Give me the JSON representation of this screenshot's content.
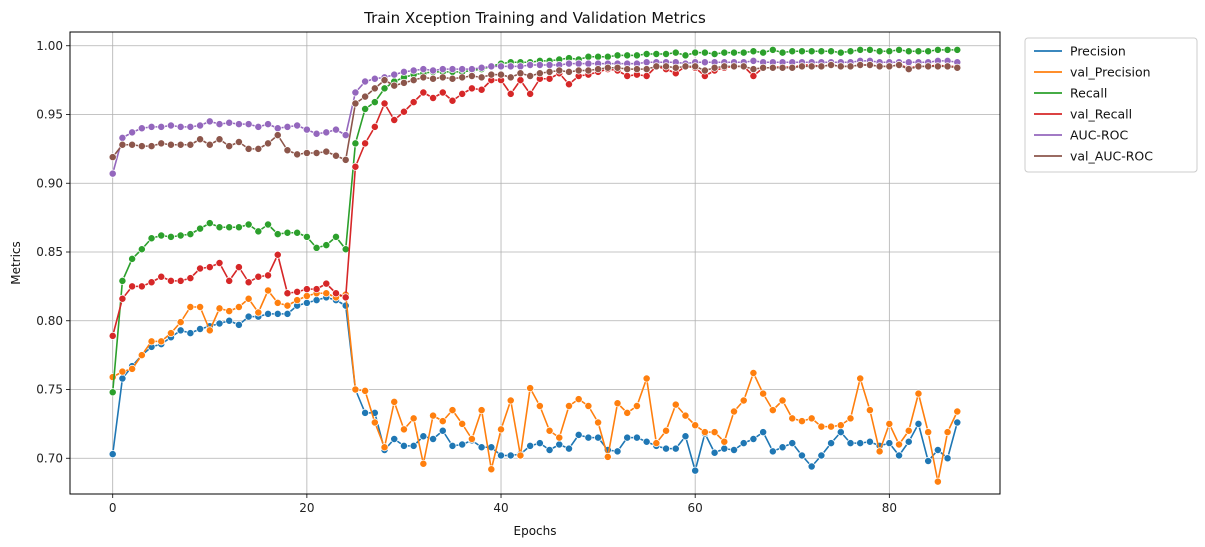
{
  "chart_data": {
    "type": "line",
    "title": "Train Xception Training and Validation Metrics",
    "xlabel": "Epochs",
    "ylabel": "Metrics",
    "xlim": [
      -4.4,
      91.4
    ],
    "ylim": [
      0.674,
      1.01
    ],
    "x_ticks": [
      0,
      20,
      40,
      60,
      80
    ],
    "x_tick_labels": [
      "0",
      "20",
      "40",
      "60",
      "80"
    ],
    "y_ticks": [
      0.7,
      0.75,
      0.8,
      0.85,
      0.9,
      0.95,
      1.0
    ],
    "y_tick_labels": [
      "0.70",
      "0.75",
      "0.80",
      "0.85",
      "0.90",
      "0.95",
      "1.00"
    ],
    "grid": true,
    "legend_position": "outside-top-right",
    "marker": "circle",
    "x": [
      0,
      1,
      2,
      3,
      4,
      5,
      6,
      7,
      8,
      9,
      10,
      11,
      12,
      13,
      14,
      15,
      16,
      17,
      18,
      19,
      20,
      21,
      22,
      23,
      24,
      25,
      26,
      27,
      28,
      29,
      30,
      31,
      32,
      33,
      34,
      35,
      36,
      37,
      38,
      39,
      40,
      41,
      42,
      43,
      44,
      45,
      46,
      47,
      48,
      49,
      50,
      51,
      52,
      53,
      54,
      55,
      56,
      57,
      58,
      59,
      60,
      61,
      62,
      63,
      64,
      65,
      66,
      67,
      68,
      69,
      70,
      71,
      72,
      73,
      74,
      75,
      76,
      77,
      78,
      79,
      80,
      81,
      82,
      83,
      84,
      85,
      86,
      87
    ],
    "series": [
      {
        "name": "Precision",
        "color": "#1f77b4",
        "values": [
          0.703,
          0.758,
          0.767,
          0.775,
          0.781,
          0.783,
          0.788,
          0.793,
          0.791,
          0.794,
          0.796,
          0.798,
          0.8,
          0.797,
          0.803,
          0.803,
          0.805,
          0.805,
          0.805,
          0.811,
          0.813,
          0.815,
          0.817,
          0.815,
          0.811,
          0.75,
          0.733,
          0.733,
          0.706,
          0.714,
          0.709,
          0.709,
          0.716,
          0.714,
          0.72,
          0.709,
          0.71,
          0.713,
          0.708,
          0.708,
          0.702,
          0.702,
          0.703,
          0.709,
          0.711,
          0.706,
          0.71,
          0.707,
          0.717,
          0.715,
          0.715,
          0.706,
          0.705,
          0.715,
          0.715,
          0.712,
          0.709,
          0.707,
          0.707,
          0.716,
          0.691,
          0.718,
          0.704,
          0.707,
          0.706,
          0.711,
          0.714,
          0.719,
          0.705,
          0.708,
          0.711,
          0.702,
          0.694,
          0.702,
          0.711,
          0.719,
          0.711,
          0.711,
          0.712,
          0.709,
          0.711,
          0.702,
          0.712,
          0.725,
          0.698,
          0.706,
          0.7,
          0.726
        ]
      },
      {
        "name": "val_Precision",
        "color": "#ff7f0e",
        "values": [
          0.759,
          0.763,
          0.765,
          0.775,
          0.785,
          0.785,
          0.791,
          0.799,
          0.81,
          0.81,
          0.793,
          0.809,
          0.807,
          0.81,
          0.816,
          0.806,
          0.822,
          0.813,
          0.811,
          0.815,
          0.818,
          0.82,
          0.82,
          0.817,
          0.819,
          0.75,
          0.749,
          0.726,
          0.708,
          0.741,
          0.721,
          0.729,
          0.696,
          0.731,
          0.727,
          0.735,
          0.725,
          0.714,
          0.735,
          0.692,
          0.721,
          0.742,
          0.702,
          0.751,
          0.738,
          0.72,
          0.715,
          0.738,
          0.743,
          0.738,
          0.726,
          0.701,
          0.74,
          0.733,
          0.738,
          0.758,
          0.711,
          0.72,
          0.739,
          0.731,
          0.724,
          0.719,
          0.719,
          0.712,
          0.734,
          0.742,
          0.762,
          0.747,
          0.735,
          0.742,
          0.729,
          0.727,
          0.729,
          0.723,
          0.723,
          0.724,
          0.729,
          0.758,
          0.735,
          0.705,
          0.725,
          0.71,
          0.72,
          0.747,
          0.719,
          0.683,
          0.719,
          0.734
        ]
      },
      {
        "name": "Recall",
        "color": "#2ca02c",
        "values": [
          0.748,
          0.829,
          0.845,
          0.852,
          0.86,
          0.862,
          0.861,
          0.862,
          0.863,
          0.867,
          0.871,
          0.868,
          0.868,
          0.868,
          0.87,
          0.865,
          0.87,
          0.863,
          0.864,
          0.864,
          0.861,
          0.853,
          0.855,
          0.861,
          0.852,
          0.929,
          0.954,
          0.959,
          0.969,
          0.974,
          0.977,
          0.979,
          0.98,
          0.981,
          0.981,
          0.981,
          0.981,
          0.982,
          0.983,
          0.985,
          0.987,
          0.988,
          0.988,
          0.988,
          0.989,
          0.989,
          0.99,
          0.991,
          0.99,
          0.992,
          0.992,
          0.992,
          0.993,
          0.993,
          0.993,
          0.994,
          0.994,
          0.994,
          0.995,
          0.993,
          0.995,
          0.995,
          0.994,
          0.995,
          0.995,
          0.995,
          0.996,
          0.995,
          0.997,
          0.995,
          0.996,
          0.996,
          0.996,
          0.996,
          0.996,
          0.995,
          0.996,
          0.997,
          0.997,
          0.996,
          0.996,
          0.997,
          0.996,
          0.996,
          0.996,
          0.997,
          0.997,
          0.997
        ]
      },
      {
        "name": "val_Recall",
        "color": "#d62728",
        "values": [
          0.789,
          0.816,
          0.825,
          0.825,
          0.828,
          0.832,
          0.829,
          0.829,
          0.831,
          0.838,
          0.839,
          0.842,
          0.829,
          0.839,
          0.828,
          0.832,
          0.833,
          0.848,
          0.82,
          0.821,
          0.823,
          0.823,
          0.827,
          0.82,
          0.817,
          0.912,
          0.929,
          0.941,
          0.958,
          0.946,
          0.952,
          0.959,
          0.966,
          0.962,
          0.966,
          0.96,
          0.965,
          0.969,
          0.968,
          0.975,
          0.975,
          0.965,
          0.975,
          0.965,
          0.976,
          0.976,
          0.98,
          0.972,
          0.978,
          0.979,
          0.981,
          0.983,
          0.982,
          0.978,
          0.979,
          0.978,
          0.985,
          0.983,
          0.98,
          0.985,
          0.984,
          0.978,
          0.982,
          0.984,
          0.985,
          0.985,
          0.978,
          0.984,
          0.984,
          0.985,
          0.984,
          0.986,
          0.986,
          0.985,
          0.986,
          0.985,
          0.985,
          0.986,
          0.986,
          0.985,
          0.985,
          0.986,
          0.984,
          0.985,
          0.985,
          0.986,
          0.985,
          0.985
        ]
      },
      {
        "name": "AUC-ROC",
        "color": "#9467bd",
        "values": [
          0.907,
          0.933,
          0.937,
          0.94,
          0.941,
          0.941,
          0.942,
          0.941,
          0.941,
          0.942,
          0.945,
          0.943,
          0.944,
          0.943,
          0.943,
          0.941,
          0.943,
          0.94,
          0.941,
          0.942,
          0.939,
          0.936,
          0.937,
          0.939,
          0.935,
          0.966,
          0.974,
          0.976,
          0.977,
          0.979,
          0.981,
          0.982,
          0.983,
          0.982,
          0.983,
          0.983,
          0.983,
          0.983,
          0.984,
          0.985,
          0.985,
          0.985,
          0.985,
          0.986,
          0.986,
          0.986,
          0.986,
          0.987,
          0.987,
          0.987,
          0.987,
          0.987,
          0.987,
          0.987,
          0.987,
          0.988,
          0.988,
          0.988,
          0.988,
          0.987,
          0.988,
          0.988,
          0.988,
          0.988,
          0.988,
          0.988,
          0.989,
          0.988,
          0.988,
          0.988,
          0.988,
          0.988,
          0.988,
          0.988,
          0.988,
          0.988,
          0.988,
          0.989,
          0.989,
          0.988,
          0.988,
          0.988,
          0.988,
          0.988,
          0.988,
          0.989,
          0.989,
          0.988
        ]
      },
      {
        "name": "val_AUC-ROC",
        "color": "#8c564b",
        "values": [
          0.919,
          0.928,
          0.928,
          0.927,
          0.927,
          0.929,
          0.928,
          0.928,
          0.928,
          0.932,
          0.928,
          0.932,
          0.927,
          0.93,
          0.925,
          0.925,
          0.929,
          0.935,
          0.924,
          0.921,
          0.922,
          0.922,
          0.923,
          0.92,
          0.917,
          0.958,
          0.963,
          0.969,
          0.975,
          0.971,
          0.973,
          0.975,
          0.977,
          0.976,
          0.977,
          0.976,
          0.977,
          0.978,
          0.977,
          0.979,
          0.979,
          0.977,
          0.98,
          0.978,
          0.98,
          0.981,
          0.982,
          0.981,
          0.982,
          0.982,
          0.983,
          0.984,
          0.984,
          0.983,
          0.983,
          0.983,
          0.985,
          0.985,
          0.984,
          0.985,
          0.985,
          0.982,
          0.984,
          0.985,
          0.985,
          0.985,
          0.983,
          0.984,
          0.984,
          0.984,
          0.984,
          0.985,
          0.985,
          0.985,
          0.986,
          0.985,
          0.985,
          0.986,
          0.986,
          0.985,
          0.985,
          0.986,
          0.983,
          0.985,
          0.985,
          0.985,
          0.985,
          0.984
        ]
      }
    ]
  }
}
